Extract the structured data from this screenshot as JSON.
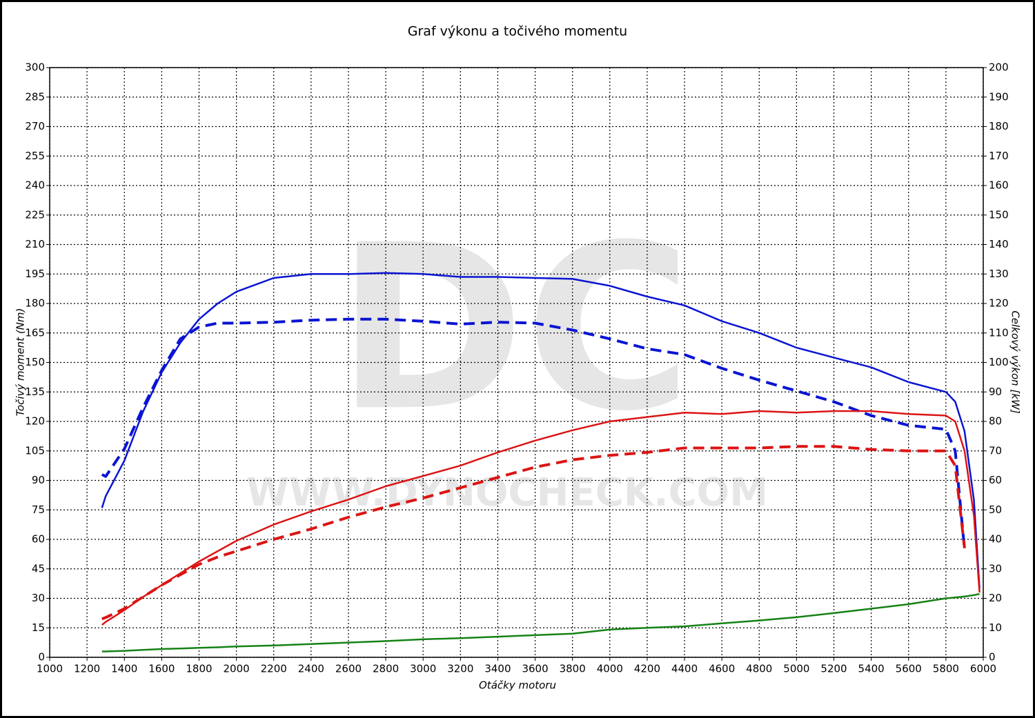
{
  "chart_data": {
    "type": "line",
    "title": "Graf výkonu a točivého momentu",
    "xlabel": "Otáčky motoru",
    "ylabel": "Točivý moment (Nm)",
    "y2label": "Celkový výkon [kW]",
    "watermark": {
      "logo": "DC",
      "url": "WWW.DYNOCHECK.COM"
    },
    "xlim": [
      1000,
      6000
    ],
    "ylim": [
      0,
      300
    ],
    "y2lim": [
      0,
      200
    ],
    "xticks": [
      1000,
      1200,
      1400,
      1600,
      1800,
      2000,
      2200,
      2400,
      2600,
      2800,
      3000,
      3200,
      3400,
      3600,
      3800,
      4000,
      4200,
      4400,
      4600,
      4800,
      5000,
      5200,
      5400,
      5600,
      5800,
      6000
    ],
    "yticks": [
      0,
      15,
      30,
      45,
      60,
      75,
      90,
      105,
      120,
      135,
      150,
      165,
      180,
      195,
      210,
      225,
      240,
      255,
      270,
      285,
      300
    ],
    "y2ticks": [
      0,
      10,
      20,
      30,
      40,
      50,
      60,
      70,
      80,
      90,
      100,
      110,
      120,
      130,
      140,
      150,
      160,
      170,
      180,
      190,
      200
    ],
    "grid": true,
    "x": [
      1280,
      1300,
      1400,
      1500,
      1600,
      1700,
      1800,
      1900,
      2000,
      2200,
      2400,
      2600,
      2800,
      3000,
      3200,
      3400,
      3600,
      3800,
      4000,
      4200,
      4400,
      4600,
      4800,
      5000,
      5200,
      5400,
      5600,
      5800,
      5850,
      5900,
      5950,
      5980
    ],
    "series": [
      {
        "color": "#0a14d2",
        "dash": false,
        "axis": "y",
        "values": [
          76,
          82,
          100,
          125,
          145,
          160,
          172,
          180,
          186,
          193,
          195,
          195,
          195.5,
          195,
          193.5,
          193.5,
          193,
          192.5,
          189,
          183.5,
          179,
          171,
          165,
          157.5,
          152.5,
          147.5,
          140,
          135,
          130,
          115,
          80,
          35
        ]
      },
      {
        "color": "#0a14d2",
        "dash": true,
        "axis": "y",
        "values": [
          93,
          92,
          106,
          127,
          146,
          162,
          168,
          170,
          170,
          170.5,
          171.5,
          172,
          172,
          171,
          169.5,
          170.5,
          170,
          166.5,
          162,
          157,
          154,
          147,
          141,
          135.5,
          130,
          123,
          118,
          116,
          105,
          55,
          null,
          null
        ]
      },
      {
        "color": "#dc1414",
        "dash": false,
        "axis": "y2",
        "values": [
          11,
          12,
          16,
          20.5,
          24.5,
          28.5,
          32.5,
          36,
          39.5,
          45,
          49.5,
          53.5,
          58,
          61.5,
          65,
          69.5,
          73.5,
          77,
          80,
          81.5,
          83,
          82.5,
          83.5,
          83,
          83.5,
          83.5,
          82.5,
          82,
          80,
          70,
          48,
          22
        ]
      },
      {
        "color": "#dc1414",
        "dash": true,
        "axis": "y2",
        "values": [
          13,
          13.5,
          16.5,
          20.5,
          24.5,
          28,
          31.5,
          34,
          36,
          40,
          43.5,
          47.5,
          51,
          54,
          57.5,
          61,
          64.5,
          67,
          68.5,
          69.5,
          71,
          71,
          71,
          71.5,
          71.5,
          70.5,
          70,
          70,
          65,
          37,
          null,
          null
        ]
      },
      {
        "color": "#148214",
        "dash": false,
        "axis": "y2",
        "values": [
          2,
          2,
          2.2,
          2.5,
          2.8,
          3,
          3.2,
          3.4,
          3.7,
          4,
          4.5,
          5,
          5.5,
          6.1,
          6.5,
          7,
          7.5,
          8,
          9.4,
          10,
          10.5,
          11.5,
          12.5,
          13.6,
          15,
          16.5,
          18,
          20,
          20.3,
          20.6,
          21.1,
          21.5
        ]
      }
    ]
  }
}
